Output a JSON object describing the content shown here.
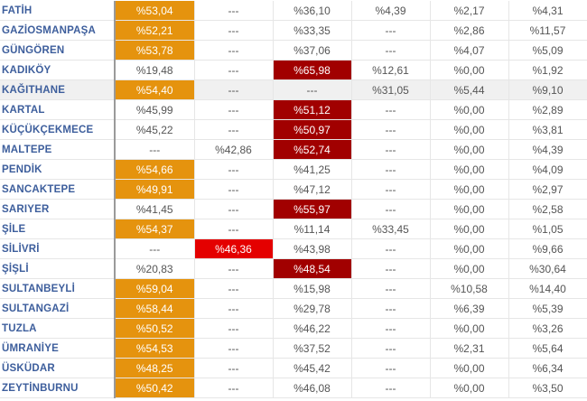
{
  "colors": {
    "orange": "#e5930e",
    "darkred": "#a10000",
    "red": "#e40000",
    "name": "#3d5e9c"
  },
  "highlighted_row": "KAĞITHANE",
  "rows": [
    {
      "name": "FATİH",
      "cells": [
        "%53,04",
        "---",
        "%36,10",
        "%4,39",
        "%2,17",
        "%4,31"
      ],
      "hl": [
        0
      ]
    },
    {
      "name": "GAZİOSMANPAŞA",
      "cells": [
        "%52,21",
        "---",
        "%33,35",
        "---",
        "%2,86",
        "%11,57"
      ],
      "hl": [
        0
      ]
    },
    {
      "name": "GÜNGÖREN",
      "cells": [
        "%53,78",
        "---",
        "%37,06",
        "---",
        "%4,07",
        "%5,09"
      ],
      "hl": [
        0
      ]
    },
    {
      "name": "KADIKÖY",
      "cells": [
        "%19,48",
        "---",
        "%65,98",
        "%12,61",
        "%0,00",
        "%1,92"
      ],
      "hl": [
        2
      ]
    },
    {
      "name": "KAĞITHANE",
      "cells": [
        "%54,40",
        "---",
        "---",
        "%31,05",
        "%5,44",
        "%9,10"
      ],
      "hl": [
        0
      ]
    },
    {
      "name": "KARTAL",
      "cells": [
        "%45,99",
        "---",
        "%51,12",
        "---",
        "%0,00",
        "%2,89"
      ],
      "hl": [
        2
      ]
    },
    {
      "name": "KÜÇÜKÇEKMECE",
      "cells": [
        "%45,22",
        "---",
        "%50,97",
        "---",
        "%0,00",
        "%3,81"
      ],
      "hl": [
        2
      ]
    },
    {
      "name": "MALTEPE",
      "cells": [
        "---",
        "%42,86",
        "%52,74",
        "---",
        "%0,00",
        "%4,39"
      ],
      "hl": [
        2
      ]
    },
    {
      "name": "PENDİK",
      "cells": [
        "%54,66",
        "---",
        "%41,25",
        "---",
        "%0,00",
        "%4,09"
      ],
      "hl": [
        0
      ]
    },
    {
      "name": "SANCAKTEPE",
      "cells": [
        "%49,91",
        "---",
        "%47,12",
        "---",
        "%0,00",
        "%2,97"
      ],
      "hl": [
        0
      ]
    },
    {
      "name": "SARIYER",
      "cells": [
        "%41,45",
        "---",
        "%55,97",
        "---",
        "%0,00",
        "%2,58"
      ],
      "hl": [
        2
      ]
    },
    {
      "name": "ŞİLE",
      "cells": [
        "%54,37",
        "---",
        "%11,14",
        "%33,45",
        "%0,00",
        "%1,05"
      ],
      "hl": [
        0
      ]
    },
    {
      "name": "SİLİVRİ",
      "cells": [
        "---",
        "%46,36",
        "%43,98",
        "---",
        "%0,00",
        "%9,66"
      ],
      "hl": [
        1
      ]
    },
    {
      "name": "ŞİŞLİ",
      "cells": [
        "%20,83",
        "---",
        "%48,54",
        "---",
        "%0,00",
        "%30,64"
      ],
      "hl": [
        2
      ]
    },
    {
      "name": "SULTANBEYLİ",
      "cells": [
        "%59,04",
        "---",
        "%15,98",
        "---",
        "%10,58",
        "%14,40"
      ],
      "hl": [
        0
      ]
    },
    {
      "name": "SULTANGAZİ",
      "cells": [
        "%58,44",
        "---",
        "%29,78",
        "---",
        "%6,39",
        "%5,39"
      ],
      "hl": [
        0
      ]
    },
    {
      "name": "TUZLA",
      "cells": [
        "%50,52",
        "---",
        "%46,22",
        "---",
        "%0,00",
        "%3,26"
      ],
      "hl": [
        0
      ]
    },
    {
      "name": "ÜMRANİYE",
      "cells": [
        "%54,53",
        "---",
        "%37,52",
        "---",
        "%2,31",
        "%5,64"
      ],
      "hl": [
        0
      ]
    },
    {
      "name": "ÜSKÜDAR",
      "cells": [
        "%48,25",
        "---",
        "%45,42",
        "---",
        "%0,00",
        "%6,34"
      ],
      "hl": [
        0
      ]
    },
    {
      "name": "ZEYTİNBURNU",
      "cells": [
        "%50,42",
        "---",
        "%46,08",
        "---",
        "%0,00",
        "%3,50"
      ],
      "hl": [
        0
      ]
    }
  ]
}
